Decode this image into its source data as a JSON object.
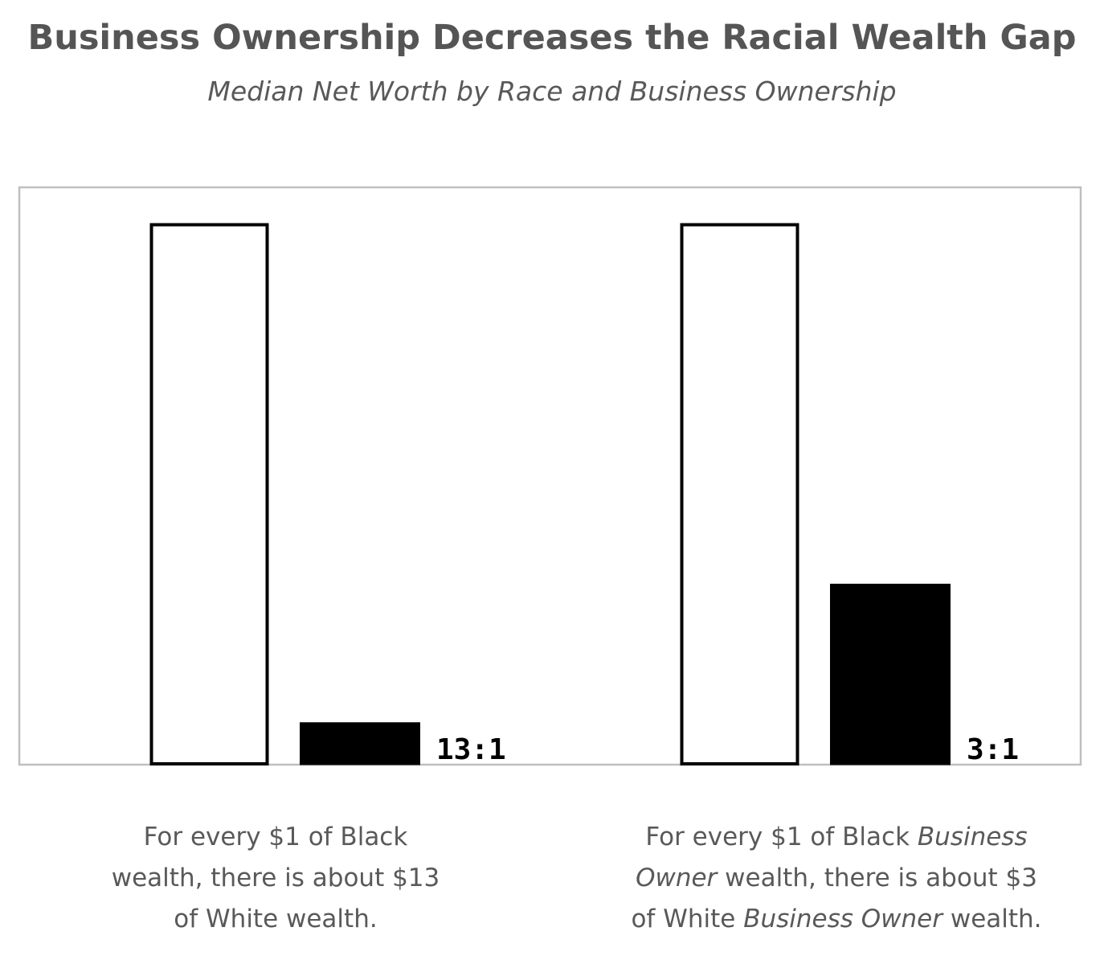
{
  "chart_data": {
    "type": "bar",
    "title": "Business Ownership Decreases the Racial Wealth Gap",
    "subtitle": "Median Net Worth by Race and Business Ownership",
    "groups": [
      {
        "ratio_label": "13:1",
        "bars": [
          {
            "value": 13,
            "color": "#ffffff"
          },
          {
            "value": 1,
            "color": "#000000"
          }
        ]
      },
      {
        "ratio_label": "3:1",
        "bars": [
          {
            "value": 3,
            "color": "#ffffff"
          },
          {
            "value": 1,
            "color": "#000000"
          }
        ]
      }
    ],
    "grid": false,
    "legend": "none"
  },
  "captions": {
    "left": {
      "line1": "For every $1 of Black",
      "line2": "wealth, there is about $13",
      "line3": "of White wealth."
    },
    "right": {
      "line1_a": "For every $1 of Black ",
      "line1_b": "Business",
      "line2_a": "Owner",
      "line2_b": " wealth, there is about $3",
      "line3_a": "of White ",
      "line3_b": "Business Owner",
      "line3_c": " wealth."
    }
  }
}
